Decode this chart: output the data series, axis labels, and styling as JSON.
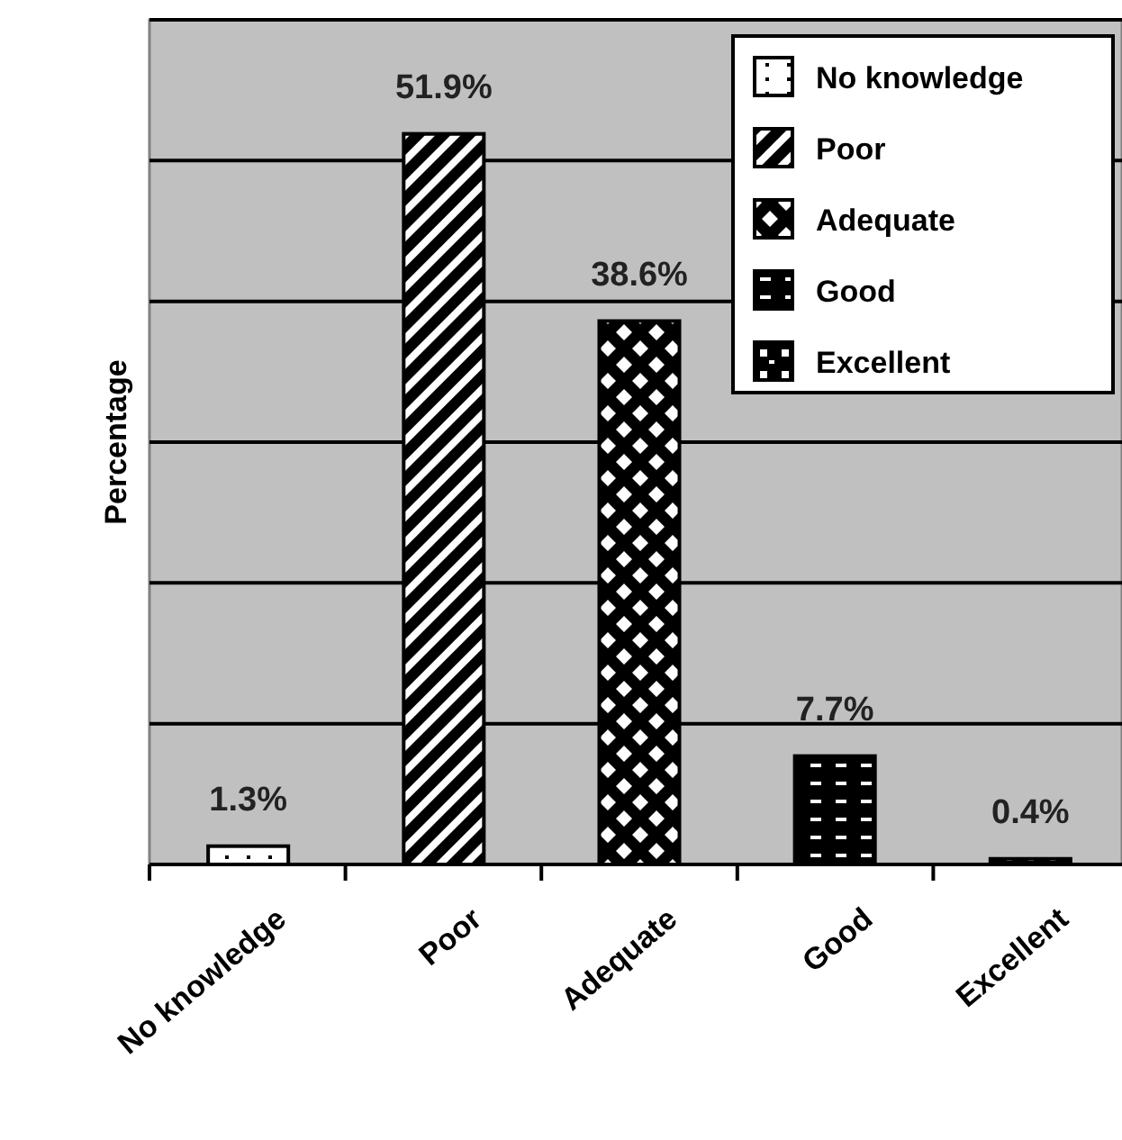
{
  "chart_data": {
    "type": "bar",
    "ylabel": "Percentage",
    "categories": [
      "No knowledge",
      "Poor",
      "Adequate",
      "Good",
      "Excellent"
    ],
    "series": [
      {
        "name": "No knowledge",
        "color": "#ffffff",
        "values": [
          1.3,
          null,
          null,
          null,
          null
        ],
        "value_labels": [
          "1.3%",
          null,
          null,
          null,
          null
        ]
      },
      {
        "name": "Poor",
        "color": "#000000",
        "values": [
          null,
          51.9,
          null,
          null,
          null
        ],
        "value_labels": [
          null,
          "51.9%",
          null,
          null,
          null
        ]
      },
      {
        "name": "Adequate",
        "color": "#000000",
        "values": [
          null,
          null,
          38.6,
          null,
          null
        ],
        "value_labels": [
          null,
          null,
          "38.6%",
          null,
          null
        ]
      },
      {
        "name": "Good",
        "color": "#000000",
        "values": [
          null,
          null,
          null,
          7.7,
          null
        ],
        "value_labels": [
          null,
          null,
          null,
          "7.7%",
          null
        ]
      },
      {
        "name": "Excellent",
        "color": "#000000",
        "values": [
          null,
          null,
          null,
          null,
          0.4
        ],
        "value_labels": [
          null,
          null,
          null,
          null,
          "0.4%"
        ]
      }
    ],
    "ylim": [
      0,
      60
    ],
    "yticks": [
      {
        "value": 0,
        "label": null
      },
      {
        "value": 10,
        "label": null
      },
      {
        "value": 20,
        "label": null
      },
      {
        "value": 30,
        "label": null
      },
      {
        "value": 40,
        "label": null
      },
      {
        "value": 50,
        "label": null
      },
      {
        "value": 60,
        "label": null
      }
    ],
    "tick_labels": "x",
    "grid": "y",
    "legend": "top right"
  }
}
